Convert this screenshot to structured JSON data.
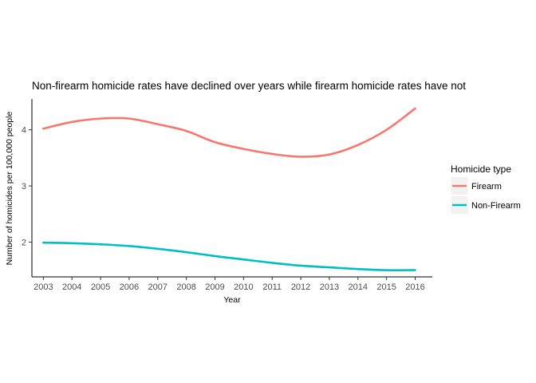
{
  "chart_data": {
    "type": "line",
    "title": "Non-firearm homicide rates have declined over years while firearm homicide rates have not",
    "xlabel": "Year",
    "ylabel": "Number of homicides per 100,000 people",
    "x": [
      2003,
      2004,
      2005,
      2006,
      2007,
      2008,
      2009,
      2010,
      2011,
      2012,
      2013,
      2014,
      2015,
      2016
    ],
    "xlim": [
      2002.6,
      2016.6
    ],
    "ylim": [
      1.38,
      4.55
    ],
    "yticks": [
      2,
      3,
      4
    ],
    "grid": false,
    "legend": {
      "title": "Homicide type",
      "position": "right"
    },
    "series": [
      {
        "name": "Firearm",
        "color": "#F8766D",
        "values": [
          4.02,
          4.14,
          4.2,
          4.2,
          4.1,
          3.98,
          3.78,
          3.66,
          3.57,
          3.52,
          3.56,
          3.73,
          4.0,
          4.38
        ]
      },
      {
        "name": "Non-Firearm",
        "color": "#00BFC4",
        "values": [
          1.99,
          1.98,
          1.96,
          1.93,
          1.88,
          1.82,
          1.75,
          1.69,
          1.63,
          1.58,
          1.55,
          1.52,
          1.5,
          1.5
        ]
      }
    ]
  }
}
